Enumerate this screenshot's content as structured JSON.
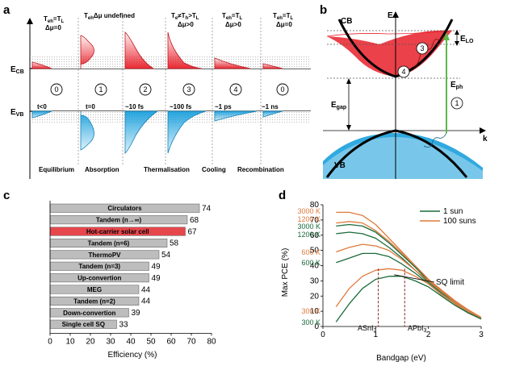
{
  "panels": {
    "a": {
      "label": "a",
      "band_labels": {
        "cb": "E",
        "cb_sub": "CB",
        "vb": "E",
        "vb_sub": "VB"
      },
      "top_labels": [
        {
          "line1": "T",
          "line1_sub": "eh",
          "line1_rest": "=T",
          "line1_sub2": "L",
          "line2": "Δμ=0"
        },
        {
          "line1": "T",
          "line1_sub": "eh",
          "line1_rest": "Δμ undefined",
          "line1_sub2": "",
          "line2": ""
        },
        {
          "line1": "",
          "line1_sub": "",
          "line1_rest": "",
          "line1_sub2": "",
          "line2": ""
        },
        {
          "line1": "T",
          "line1_sub": "e",
          "line1_rest": "≠T",
          "line1_sub2": "h",
          "line1_tail": ">T",
          "line1_sub3": "L",
          "line2": "Δμ>0"
        },
        {
          "line1": "T",
          "line1_sub": "eh",
          "line1_rest": "=T",
          "line1_sub2": "L",
          "line2": "Δμ>0"
        },
        {
          "line1": "T",
          "line1_sub": "eh",
          "line1_rest": "=T",
          "line1_sub2": "L",
          "line2": "Δμ=0"
        }
      ],
      "stages": [
        "0",
        "1",
        "2",
        "3",
        "4",
        "0"
      ],
      "times": [
        "t<0",
        "t=0",
        "~10 fs",
        "~100 fs",
        "~1 ps",
        "~1 ns"
      ],
      "processes": [
        "Equilibrium",
        "Absorption",
        "Thermalisation",
        "Cooling",
        "Recombination"
      ],
      "cb_color": "#e8202a",
      "vb_color": "#1aa0dc"
    },
    "b": {
      "label": "b",
      "cb": "CB",
      "vb": "VB",
      "e_axis": "E",
      "k_axis": "k",
      "e_lo": "E",
      "e_lo_sub": "LO",
      "e_gap": "E",
      "e_gap_sub": "gap",
      "e_ph": "E",
      "e_ph_sub": "ph",
      "markers": [
        "1",
        "3",
        "4"
      ]
    },
    "c": {
      "label": "c",
      "xlabel": "Efficiency (%)",
      "xticks": [
        "0",
        "10",
        "20",
        "30",
        "40",
        "50",
        "60",
        "70",
        "80"
      ]
    },
    "d": {
      "label": "d",
      "xlabel": "Bandgap (eV)",
      "ylabel": "Max PCE (%)",
      "legend": [
        "1 sun",
        "100 suns"
      ],
      "annotation": "SQ limit",
      "markers": [
        {
          "text": "ASnI",
          "sub": "3"
        },
        {
          "text": "APbI",
          "sub": "3"
        }
      ],
      "temp_labels_left": [
        {
          "text": "3000 K",
          "color": "#e07a3c"
        },
        {
          "text": "1200 K",
          "color": "#e07a3c"
        },
        {
          "text": "3000 K",
          "color": "#1a6b3a"
        },
        {
          "text": "1200 K",
          "color": "#1a6b3a"
        },
        {
          "text": "600 K",
          "color": "#e07a3c"
        },
        {
          "text": "600 K",
          "color": "#1a6b3a"
        },
        {
          "text": "300 K",
          "color": "#e07a3c"
        },
        {
          "text": "300 K",
          "color": "#1a6b3a"
        }
      ]
    }
  },
  "chart_data": [
    {
      "type": "bar",
      "title": "",
      "categories": [
        "Circulators",
        "Tandem (n→∞)",
        "Hot-carrier solar cell",
        "Tandem (n=6)",
        "ThermoPV",
        "Tandem (n=3)",
        "Up-convertion",
        "MEG",
        "Tandem (n=2)",
        "Down-convertion",
        "Single cell SQ"
      ],
      "values": [
        74,
        68,
        67,
        58,
        54,
        49,
        49,
        44,
        44,
        39,
        33
      ],
      "highlight_index": 2,
      "highlight_color": "#e6474d",
      "bar_color": "#bdbdbd",
      "xlabel": "Efficiency (%)",
      "xlim": [
        0,
        80
      ]
    },
    {
      "type": "line",
      "title": "",
      "xlabel": "Bandgap (eV)",
      "ylabel": "Max PCE (%)",
      "xlim": [
        0,
        3
      ],
      "ylim": [
        0,
        80
      ],
      "series": [
        {
          "name": "100 suns",
          "temp": "3000 K",
          "color": "#e07a3c",
          "x": [
            0.25,
            0.5,
            0.75,
            1.0,
            1.25,
            1.5,
            1.75,
            2.0,
            2.25,
            2.5,
            2.75,
            3.0
          ],
          "y": [
            75,
            75,
            73,
            67,
            58,
            49,
            40,
            31,
            24,
            17,
            11,
            6
          ]
        },
        {
          "name": "100 suns",
          "temp": "1200 K",
          "color": "#e07a3c",
          "x": [
            0.25,
            0.5,
            0.75,
            1.0,
            1.25,
            1.5,
            1.75,
            2.0,
            2.25,
            2.5,
            2.75,
            3.0
          ],
          "y": [
            68,
            69,
            68,
            63,
            56,
            48,
            39,
            31,
            23,
            17,
            11,
            6
          ]
        },
        {
          "name": "1 sun",
          "temp": "3000 K",
          "color": "#1a6b3a",
          "x": [
            0.25,
            0.5,
            0.75,
            1.0,
            1.25,
            1.5,
            1.75,
            2.0,
            2.25,
            2.5,
            2.75,
            3.0
          ],
          "y": [
            66,
            67,
            66,
            62,
            55,
            47,
            39,
            30,
            23,
            16,
            10,
            5
          ]
        },
        {
          "name": "1 sun",
          "temp": "1200 K",
          "color": "#1a6b3a",
          "x": [
            0.25,
            0.5,
            0.75,
            1.0,
            1.25,
            1.5,
            1.75,
            2.0,
            2.25,
            2.5,
            2.75,
            3.0
          ],
          "y": [
            61,
            62,
            61,
            58,
            52,
            45,
            37,
            29,
            22,
            16,
            10,
            5
          ]
        },
        {
          "name": "100 suns",
          "temp": "600 K",
          "color": "#e07a3c",
          "x": [
            0.25,
            0.5,
            0.75,
            1.0,
            1.25,
            1.5,
            1.75,
            2.0,
            2.25,
            2.5,
            2.75,
            3.0
          ],
          "y": [
            49,
            52,
            54,
            53,
            50,
            44,
            37,
            30,
            23,
            16,
            10,
            5
          ]
        },
        {
          "name": "1 sun",
          "temp": "600 K",
          "color": "#1a6b3a",
          "x": [
            0.25,
            0.5,
            0.75,
            1.0,
            1.25,
            1.5,
            1.75,
            2.0,
            2.25,
            2.5,
            2.75,
            3.0
          ],
          "y": [
            42,
            45,
            48,
            48,
            46,
            41,
            35,
            28,
            21,
            15,
            9,
            5
          ]
        },
        {
          "name": "100 suns",
          "temp": "300 K",
          "color": "#e07a3c",
          "x": [
            0.25,
            0.5,
            0.75,
            1.0,
            1.25,
            1.5,
            1.75,
            2.0,
            2.25,
            2.5,
            2.75,
            3.0
          ],
          "y": [
            13,
            25,
            33,
            37,
            38,
            37,
            33,
            28,
            21,
            15,
            9,
            5
          ]
        },
        {
          "name": "1 sun",
          "temp": "300 K",
          "color": "#1a6b3a",
          "x": [
            0.25,
            0.5,
            0.75,
            1.0,
            1.25,
            1.5,
            1.75,
            2.0,
            2.25,
            2.5,
            2.75,
            3.0
          ],
          "y": [
            3,
            15,
            25,
            31,
            33,
            33,
            30,
            26,
            20,
            14,
            9,
            5
          ]
        }
      ],
      "markers_x": [
        1.05,
        1.55
      ],
      "annotation_target": [
        1.35,
        34
      ]
    }
  ]
}
